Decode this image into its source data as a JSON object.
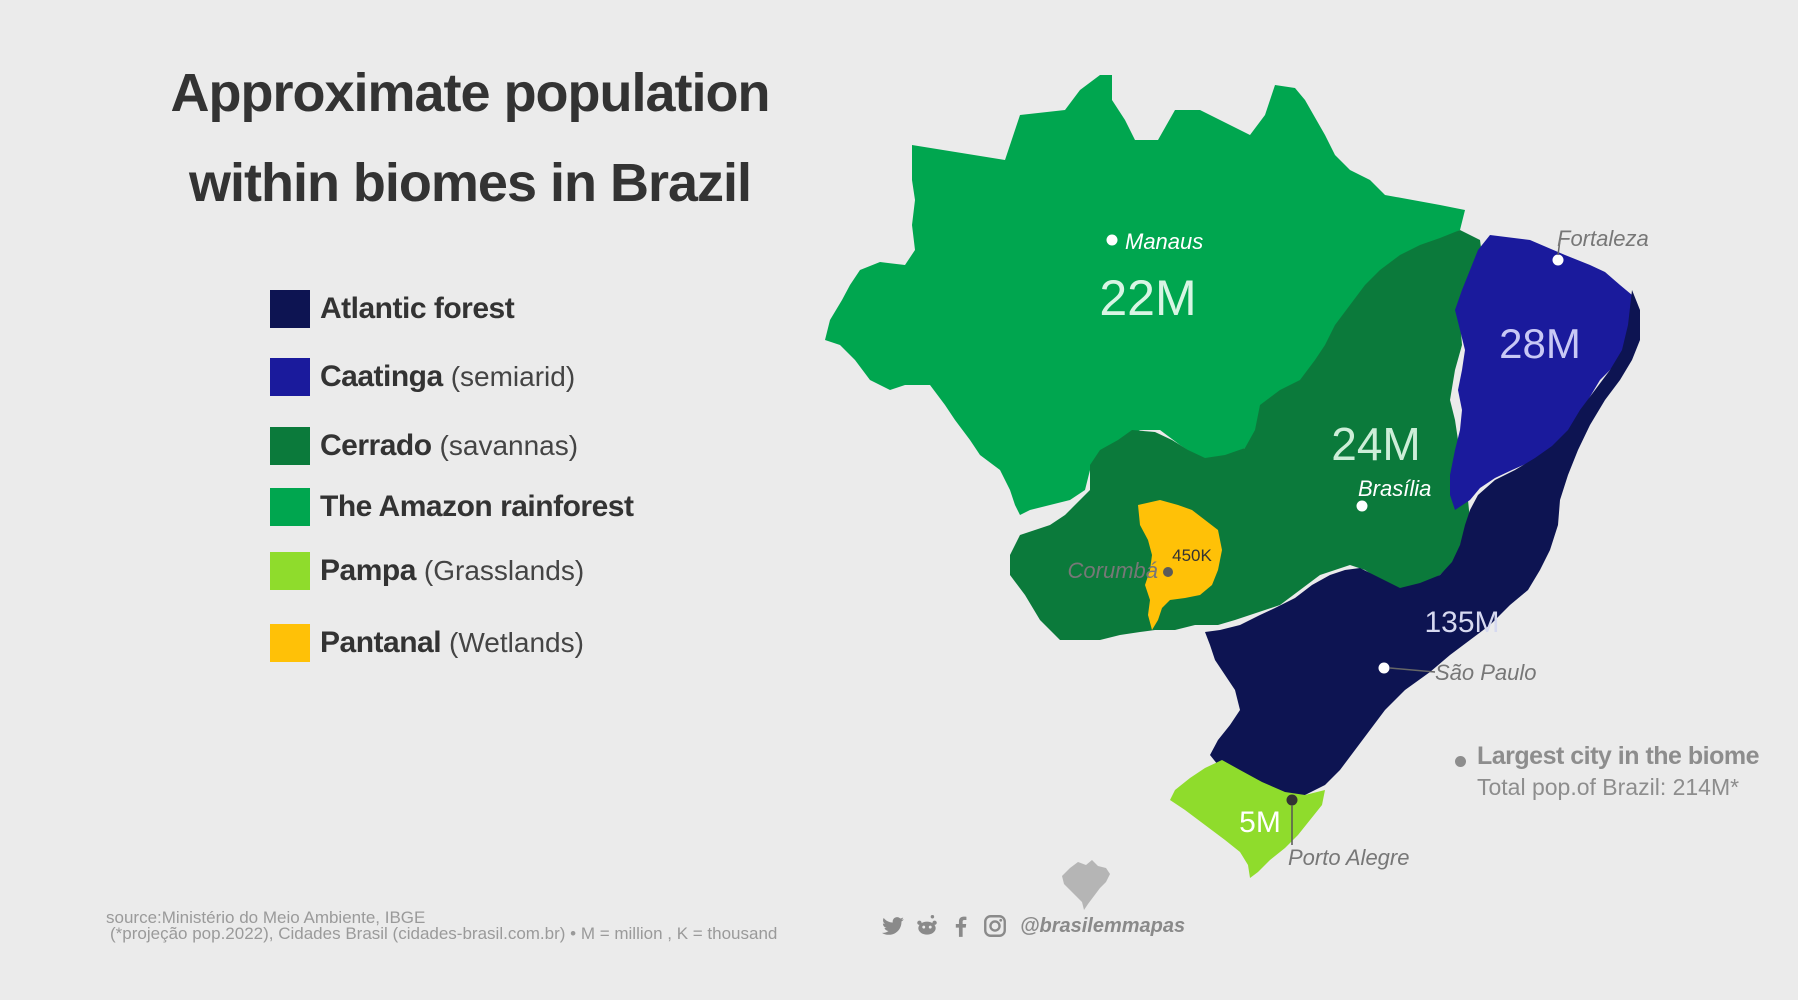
{
  "title_line1": "Approximate population",
  "title_line2": "within biomes in Brazil",
  "legend": [
    {
      "name": "Atlantic forest",
      "sub": "",
      "color": "#0d1452"
    },
    {
      "name": "Caatinga",
      "sub": "(semiarid)",
      "color": "#1a1a9c"
    },
    {
      "name": "Cerrado",
      "sub": "(savannas)",
      "color": "#0b7a3b"
    },
    {
      "name": "The Amazon rainforest",
      "sub": "",
      "color": "#00a64f"
    },
    {
      "name": "Pampa",
      "sub": "(Grasslands)",
      "color": "#8fdc2c"
    },
    {
      "name": "Pantanal",
      "sub": "(Wetlands)",
      "color": "#ffc107"
    }
  ],
  "biome_populations": {
    "amazon": "22M",
    "caatinga": "28M",
    "cerrado": "24M",
    "atlantic": "135M",
    "pampa": "5M",
    "pantanal": "450K"
  },
  "cities": {
    "manaus": "Manaus",
    "fortaleza": "Fortaleza",
    "brasilia": "Brasília",
    "corumba": "Corumbá",
    "sao_paulo": "São Paulo",
    "porto_alegre": "Porto Alegre"
  },
  "note": {
    "title": "Largest city in the biome",
    "subtitle": "Total pop.of Brazil: 214M*"
  },
  "source_line1": "source:Ministério do Meio Ambiente, IBGE",
  "source_line2": "(*projeção pop.2022), Cidades Brasil (cidades-brasil.com.br)  • M = million , K = thousand",
  "social": {
    "icons": [
      "twitter-icon",
      "reddit-icon",
      "facebook-icon",
      "instagram-icon"
    ],
    "handle": "@brasilemmapas"
  }
}
